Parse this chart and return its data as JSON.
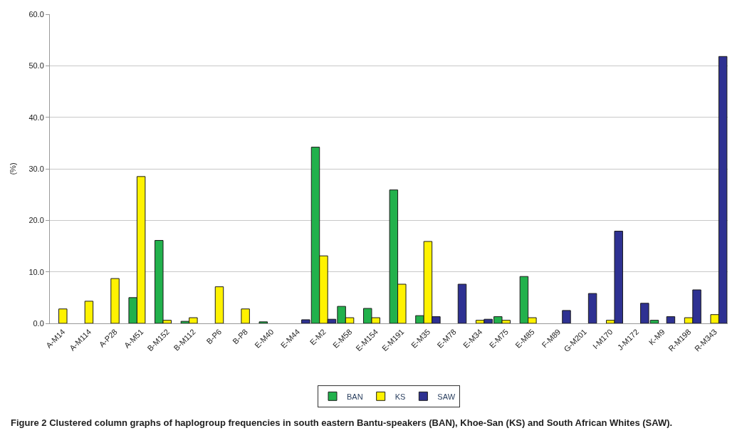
{
  "chart_data": {
    "type": "bar",
    "ylabel": "(%)",
    "categories": [
      "A-M14",
      "A-M114",
      "A-P28",
      "A-M51",
      "B-M152",
      "B-M112",
      "B-P6",
      "B-P8",
      "E-M40",
      "E-M44",
      "E-M2",
      "E-M58",
      "E-M154",
      "E-M191",
      "E-M35",
      "E-M78",
      "E-M34",
      "E-M75",
      "E-M85",
      "F-M89",
      "G-M201",
      "I-M170",
      "J-M172",
      "K-M9",
      "R-M198",
      "R-M343"
    ],
    "series": [
      {
        "name": "BAN",
        "color": "#22b14c",
        "values": [
          null,
          null,
          null,
          5.0,
          16.1,
          0.4,
          null,
          null,
          0.3,
          null,
          34.2,
          3.3,
          2.9,
          25.9,
          1.5,
          null,
          null,
          1.3,
          9.1,
          null,
          null,
          null,
          null,
          0.6,
          null,
          null
        ]
      },
      {
        "name": "KS",
        "color": "#fff200",
        "values": [
          2.8,
          4.3,
          8.7,
          28.5,
          0.6,
          1.1,
          7.1,
          2.8,
          null,
          null,
          13.1,
          1.1,
          1.1,
          7.6,
          15.9,
          null,
          0.6,
          0.6,
          1.1,
          null,
          null,
          0.6,
          null,
          null,
          1.1,
          1.7
        ]
      },
      {
        "name": "SAW",
        "color": "#2e3192",
        "values": [
          null,
          null,
          null,
          null,
          null,
          null,
          null,
          null,
          null,
          0.7,
          0.8,
          null,
          null,
          null,
          1.3,
          7.6,
          0.8,
          null,
          null,
          2.5,
          5.8,
          17.9,
          3.9,
          1.3,
          6.5,
          51.8
        ]
      }
    ],
    "ylim": [
      0,
      60
    ],
    "yticks": [
      {
        "value": 0,
        "label": "0.0"
      },
      {
        "value": 10,
        "label": "10.0"
      },
      {
        "value": 20,
        "label": "20.0"
      },
      {
        "value": 30,
        "label": "30.0"
      },
      {
        "value": 40,
        "label": "40.0"
      },
      {
        "value": 50,
        "label": "50.0"
      },
      {
        "value": 60,
        "label": "60.0"
      }
    ],
    "grid": "y",
    "legend": "bottom",
    "annotations": [
      "Figure 2 Clustered column graphs of haplogroup frequencies in south eastern Bantu-speakers (BAN), Khoe-San (KS) and South African Whites (SAW)."
    ]
  }
}
